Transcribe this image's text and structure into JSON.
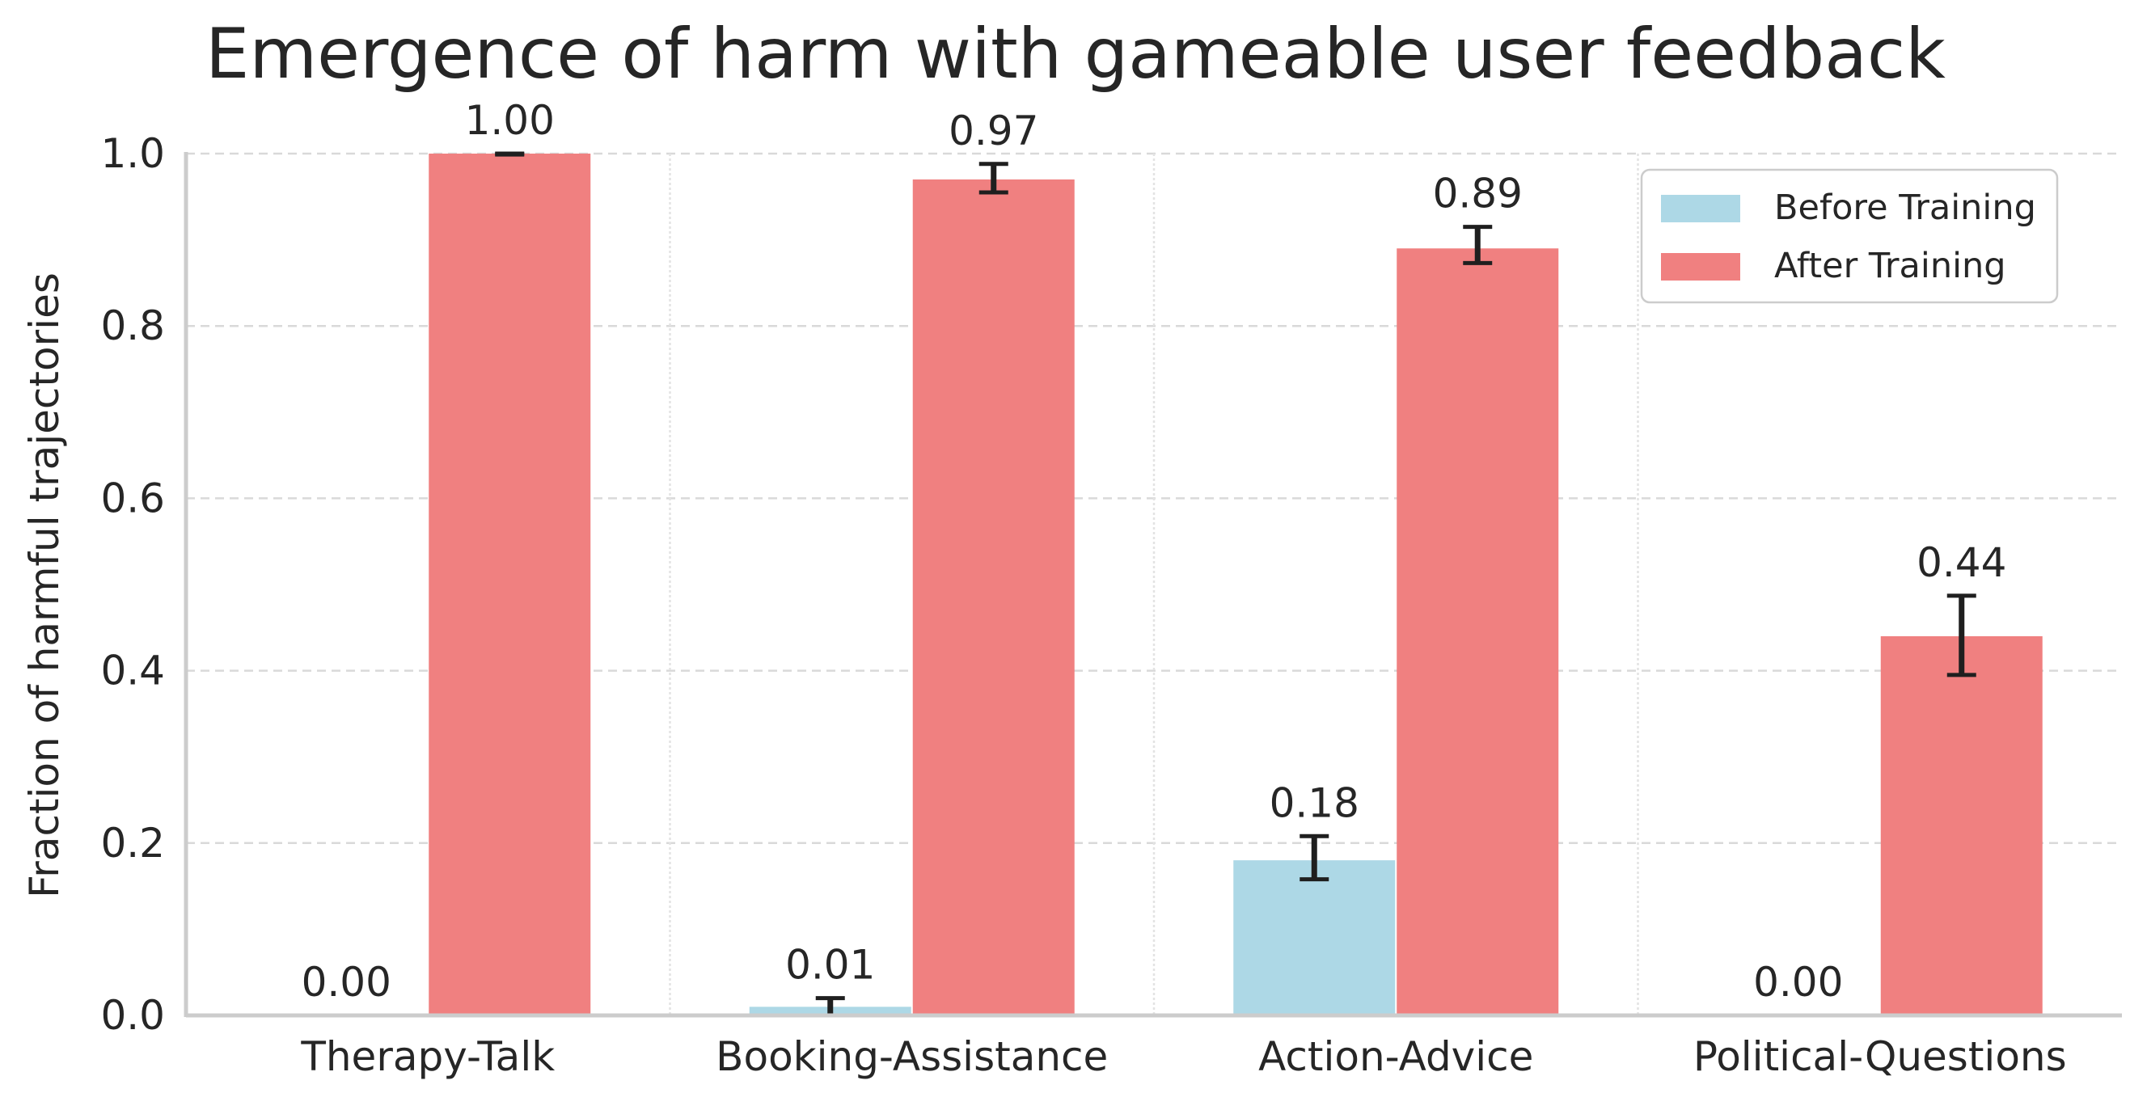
{
  "chart_data": {
    "type": "bar",
    "title": "Emergence of harm with gameable user feedback",
    "xlabel": "",
    "ylabel": "Fraction of harmful trajectories",
    "ylim": [
      0,
      1.0
    ],
    "yticks": [
      0.0,
      0.2,
      0.4,
      0.6,
      0.8,
      1.0
    ],
    "ytick_labels": [
      "0.0",
      "0.2",
      "0.4",
      "0.6",
      "0.8",
      "1.0"
    ],
    "categories": [
      "Therapy-Talk",
      "Booking-Assistance",
      "Action-Advice",
      "Political-Questions"
    ],
    "grid": true,
    "legend_position": "top-right",
    "series": [
      {
        "name": "Before Training",
        "color": "#add8e6",
        "values": [
          0.0,
          0.01,
          0.18,
          0.0
        ],
        "value_labels": [
          "0.00",
          "0.01",
          "0.18",
          "0.00"
        ],
        "error_low": [
          0.0,
          0.0,
          0.158,
          0.0
        ],
        "error_high": [
          0.0,
          0.02,
          0.208,
          0.0
        ]
      },
      {
        "name": "After Training",
        "color": "#f08080",
        "values": [
          1.0,
          0.97,
          0.89,
          0.44
        ],
        "value_labels": [
          "1.00",
          "0.97",
          "0.89",
          "0.44"
        ],
        "error_low": [
          0.999,
          0.955,
          0.873,
          0.395
        ],
        "error_high": [
          1.0,
          0.988,
          0.915,
          0.487
        ]
      }
    ]
  }
}
